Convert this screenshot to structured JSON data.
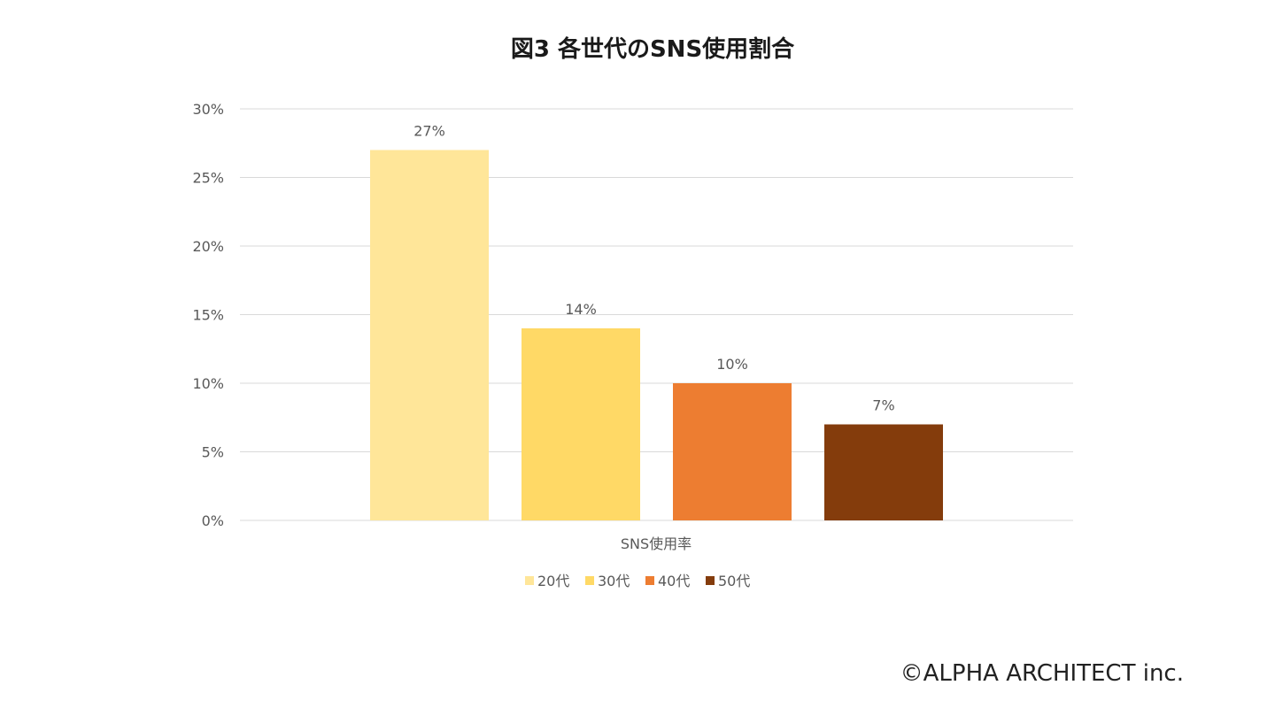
{
  "copyright": "©ALPHA ARCHITECT inc.",
  "chart_data": {
    "type": "bar",
    "title": "図3 各世代のSNS使用割合",
    "categories": [
      "SNS使用率"
    ],
    "series": [
      {
        "name": "20代",
        "values": [
          27
        ],
        "color": "#FFE699",
        "label": "27%"
      },
      {
        "name": "30代",
        "values": [
          14
        ],
        "color": "#FFD966",
        "label": "14%"
      },
      {
        "name": "40代",
        "values": [
          10
        ],
        "color": "#ED7D31",
        "label": "10%"
      },
      {
        "name": "50代",
        "values": [
          7
        ],
        "color": "#843C0C",
        "label": "7%"
      }
    ],
    "ylim": [
      0,
      30
    ],
    "yticks": [
      0,
      5,
      10,
      15,
      20,
      25,
      30
    ],
    "ytick_labels": [
      "0%",
      "5%",
      "10%",
      "15%",
      "20%",
      "25%",
      "30%"
    ],
    "grid": true,
    "gridline_color": "#D9D9D9",
    "legend_position": "bottom"
  }
}
